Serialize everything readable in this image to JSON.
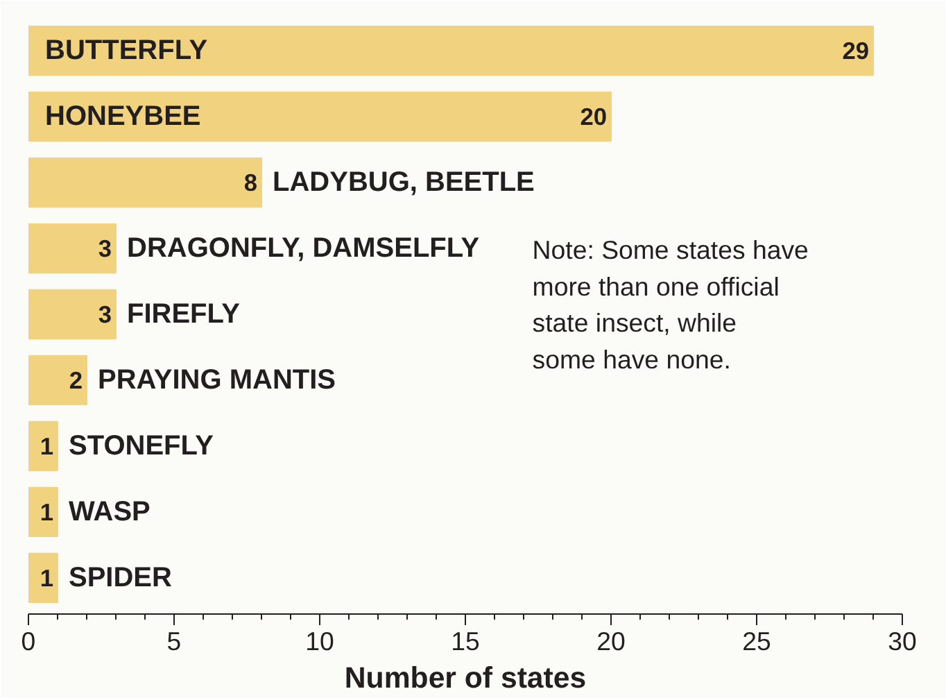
{
  "chart_data": {
    "type": "bar",
    "orientation": "horizontal",
    "xlabel": "Number of states",
    "categories": [
      "BUTTERFLY",
      "HONEYBEE",
      "LADYBUG, BEETLE",
      "DRAGONFLY, DAMSELFLY",
      "FIREFLY",
      "PRAYING MANTIS",
      "STONEFLY",
      "WASP",
      "SPIDER"
    ],
    "values": [
      29,
      20,
      8,
      3,
      3,
      2,
      1,
      1,
      1
    ],
    "color": "#f1d27e",
    "data_labels": true,
    "xlim": [
      0,
      30
    ],
    "xticks": [
      0,
      5,
      10,
      15,
      20,
      25,
      30
    ],
    "grid": false,
    "annotations": [
      {
        "text": "Note: Some states have more than one official state insect, while some have none."
      }
    ]
  }
}
